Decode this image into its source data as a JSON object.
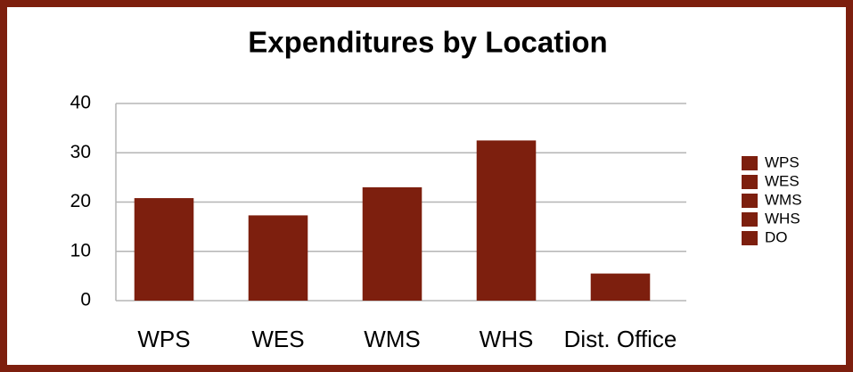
{
  "chart_data": {
    "type": "bar",
    "title": "Expenditures by Location",
    "categories": [
      "WPS",
      "WES",
      "WMS",
      "WHS",
      "Dist. Office"
    ],
    "values": [
      20.8,
      17.3,
      23,
      32.5,
      5.5
    ],
    "color": "#7d1f0e",
    "ylim": [
      0,
      40
    ],
    "yticks": [
      0,
      10,
      20,
      30,
      40
    ],
    "grid": true,
    "legend": [
      "WPS",
      "WES",
      "WMS",
      "WHS",
      "DO"
    ],
    "legend_position": "right"
  }
}
